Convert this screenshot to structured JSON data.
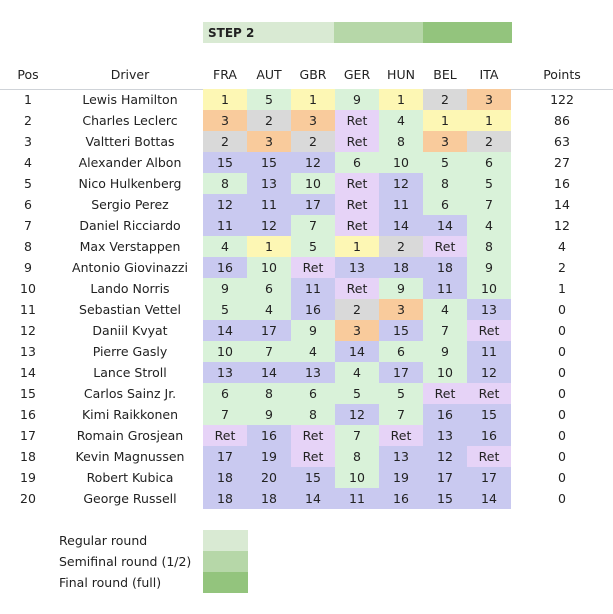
{
  "step": {
    "label": "STEP 2"
  },
  "headers": {
    "pos": "Pos",
    "driver": "Driver",
    "races": [
      "FRA",
      "AUT",
      "GBR",
      "GER",
      "HUN",
      "BEL",
      "ITA"
    ],
    "points": "Points"
  },
  "colors": {
    "P1": "#fdf7b4",
    "P2": "#d9d9d9",
    "P3": "#f9cb9c",
    "points": "#d9f2d9",
    "nopoints": "#c9c9f0",
    "ret": "#e6d3f7",
    "legend": [
      "#d9ead3",
      "#b6d7a8",
      "#93c47d"
    ]
  },
  "rows": [
    {
      "pos": "1",
      "driver": "Lewis Hamilton",
      "results": [
        "1",
        "5",
        "1",
        "9",
        "1",
        "2",
        "3"
      ],
      "points": "122"
    },
    {
      "pos": "2",
      "driver": "Charles Leclerc",
      "results": [
        "3",
        "2",
        "3",
        "Ret",
        "4",
        "1",
        "1"
      ],
      "points": "86"
    },
    {
      "pos": "3",
      "driver": "Valtteri Bottas",
      "results": [
        "2",
        "3",
        "2",
        "Ret",
        "8",
        "3",
        "2"
      ],
      "points": "63"
    },
    {
      "pos": "4",
      "driver": "Alexander Albon",
      "results": [
        "15",
        "15",
        "12",
        "6",
        "10",
        "5",
        "6"
      ],
      "points": "27"
    },
    {
      "pos": "5",
      "driver": "Nico Hulkenberg",
      "results": [
        "8",
        "13",
        "10",
        "Ret",
        "12",
        "8",
        "5"
      ],
      "points": "16"
    },
    {
      "pos": "6",
      "driver": "Sergio Perez",
      "results": [
        "12",
        "11",
        "17",
        "Ret",
        "11",
        "6",
        "7"
      ],
      "points": "14"
    },
    {
      "pos": "7",
      "driver": "Daniel Ricciardo",
      "results": [
        "11",
        "12",
        "7",
        "Ret",
        "14",
        "14",
        "4"
      ],
      "points": "12"
    },
    {
      "pos": "8",
      "driver": "Max Verstappen",
      "results": [
        "4",
        "1",
        "5",
        "1",
        "2",
        "Ret",
        "8"
      ],
      "points": "4"
    },
    {
      "pos": "9",
      "driver": "Antonio Giovinazzi",
      "results": [
        "16",
        "10",
        "Ret",
        "13",
        "18",
        "18",
        "9"
      ],
      "points": "2"
    },
    {
      "pos": "10",
      "driver": "Lando Norris",
      "results": [
        "9",
        "6",
        "11",
        "Ret",
        "9",
        "11",
        "10"
      ],
      "points": "1"
    },
    {
      "pos": "11",
      "driver": "Sebastian Vettel",
      "results": [
        "5",
        "4",
        "16",
        "2",
        "3",
        "4",
        "13"
      ],
      "points": "0"
    },
    {
      "pos": "12",
      "driver": "Daniil Kvyat",
      "results": [
        "14",
        "17",
        "9",
        "3",
        "15",
        "7",
        "Ret"
      ],
      "points": "0"
    },
    {
      "pos": "13",
      "driver": "Pierre Gasly",
      "results": [
        "10",
        "7",
        "4",
        "14",
        "6",
        "9",
        "11"
      ],
      "points": "0"
    },
    {
      "pos": "14",
      "driver": "Lance Stroll",
      "results": [
        "13",
        "14",
        "13",
        "4",
        "17",
        "10",
        "12"
      ],
      "points": "0"
    },
    {
      "pos": "15",
      "driver": "Carlos Sainz Jr.",
      "results": [
        "6",
        "8",
        "6",
        "5",
        "5",
        "Ret",
        "Ret"
      ],
      "points": "0"
    },
    {
      "pos": "16",
      "driver": "Kimi Raikkonen",
      "results": [
        "7",
        "9",
        "8",
        "12",
        "7",
        "16",
        "15"
      ],
      "points": "0"
    },
    {
      "pos": "17",
      "driver": "Romain Grosjean",
      "results": [
        "Ret",
        "16",
        "Ret",
        "7",
        "Ret",
        "13",
        "16"
      ],
      "points": "0"
    },
    {
      "pos": "18",
      "driver": "Kevin Magnussen",
      "results": [
        "17",
        "19",
        "Ret",
        "8",
        "13",
        "12",
        "Ret"
      ],
      "points": "0"
    },
    {
      "pos": "19",
      "driver": "Robert Kubica",
      "results": [
        "18",
        "20",
        "15",
        "10",
        "19",
        "17",
        "17"
      ],
      "points": "0"
    },
    {
      "pos": "20",
      "driver": "George Russell",
      "results": [
        "18",
        "18",
        "14",
        "11",
        "16",
        "15",
        "14"
      ],
      "points": "0"
    }
  ],
  "legend": [
    {
      "label": "Regular round"
    },
    {
      "label": "Semifinal round (1/2)"
    },
    {
      "label": "Final round (full)"
    }
  ]
}
